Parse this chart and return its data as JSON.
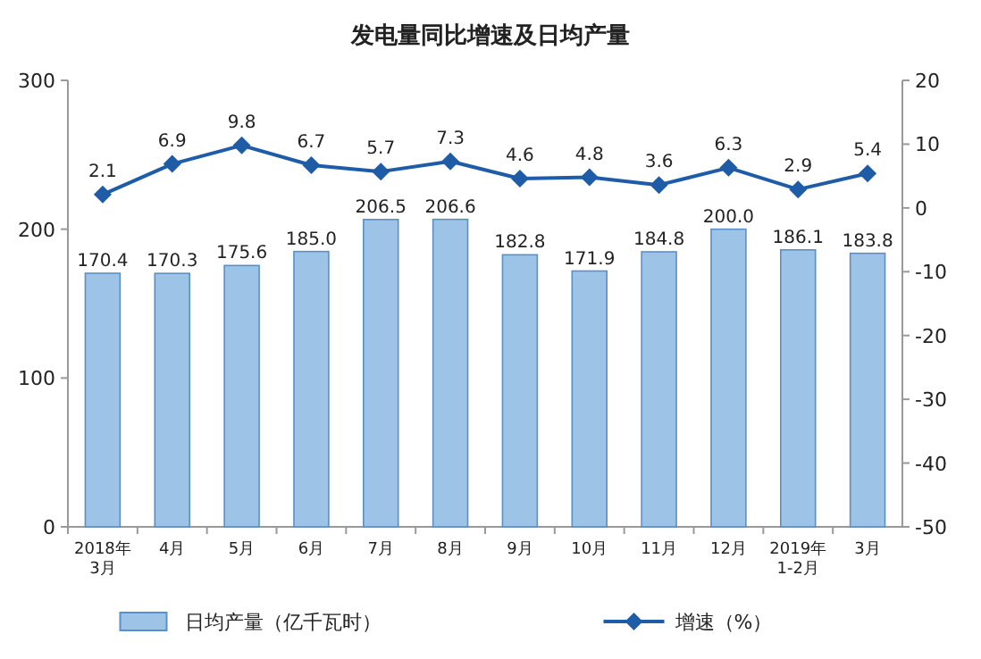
{
  "chart_data": {
    "type": "bar",
    "title": "发电量同比增速及日均产量",
    "categories": [
      "2018年\n3月",
      "4月",
      "5月",
      "6月",
      "7月",
      "8月",
      "9月",
      "10月",
      "11月",
      "12月",
      "2019年\n1-2月",
      "3月"
    ],
    "series": [
      {
        "name": "日均产量（亿千瓦时）",
        "color": "#9dc3e6",
        "values": [
          170.4,
          170.3,
          175.6,
          185.0,
          206.5,
          206.6,
          182.8,
          171.9,
          184.8,
          200.0,
          186.1,
          183.8
        ],
        "value_labels": [
          "170.4",
          "170.3",
          "175.6",
          "185.0",
          "206.5",
          "206.6",
          "182.8",
          "171.9",
          "184.8",
          "200.0",
          "186.1",
          "183.8"
        ]
      },
      {
        "name": "增速（%）",
        "type": "line",
        "axis": "y2",
        "color": "#1f5ca8",
        "marker": "diamond",
        "values": [
          2.1,
          6.9,
          9.8,
          6.7,
          5.7,
          7.3,
          4.6,
          4.8,
          3.6,
          6.3,
          2.9,
          5.4
        ]
      }
    ],
    "ylim": [
      0,
      300
    ],
    "yticks": [
      0,
      100,
      200,
      300
    ],
    "y2lim": [
      -50,
      20
    ],
    "y2ticks": [
      -50,
      -40,
      -30,
      -20,
      -10,
      0,
      10,
      20
    ],
    "data_labels": true,
    "legend": "bottom",
    "grid": false
  }
}
